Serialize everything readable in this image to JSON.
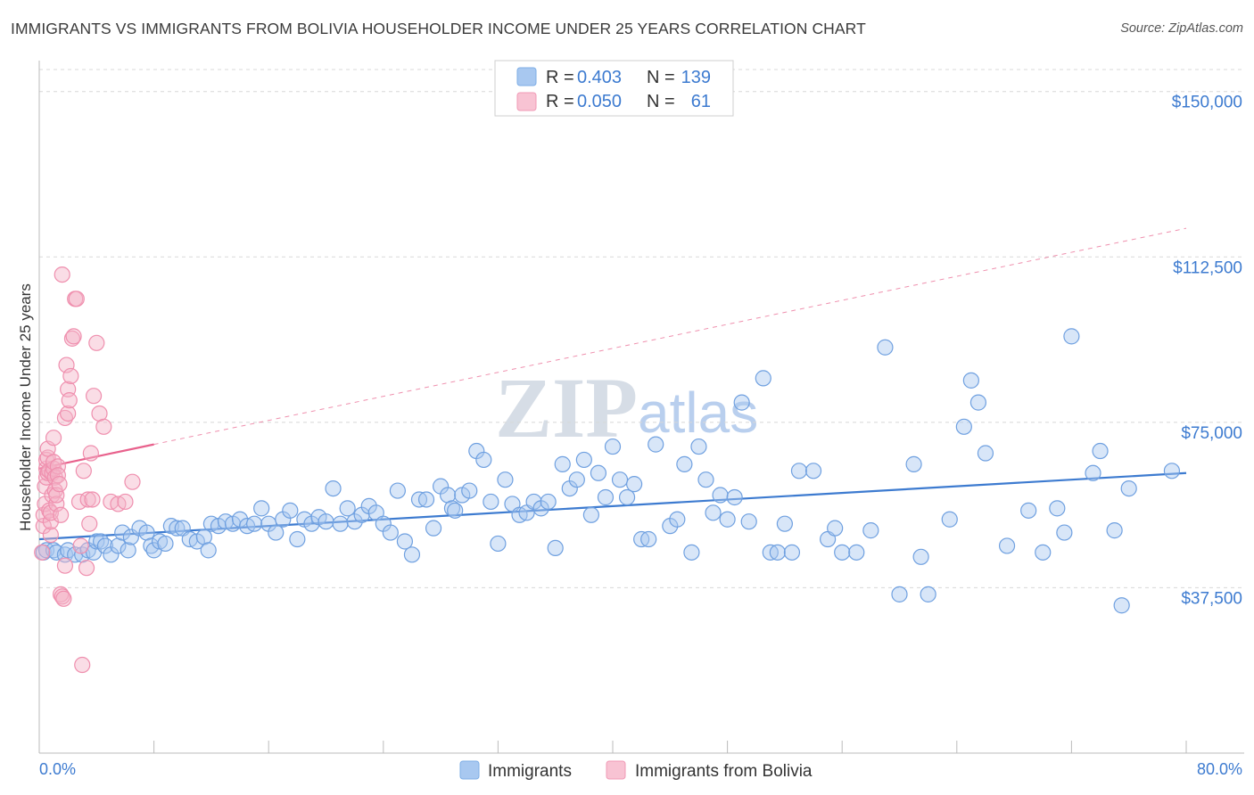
{
  "title": "IMMIGRANTS VS IMMIGRANTS FROM BOLIVIA HOUSEHOLDER INCOME UNDER 25 YEARS CORRELATION CHART",
  "source": "Source: ZipAtlas.com",
  "watermark": {
    "zip": "ZIP",
    "atlas": "atlas"
  },
  "colors": {
    "blue": "#3d7bd0",
    "blue_fill": "#a8c8f0",
    "pink": "#e8618c",
    "pink_fill": "#f5b3c8",
    "grid": "#d8d8d8"
  },
  "legend": {
    "series": [
      {
        "r_label": "R =",
        "r_value": "0.403",
        "n_label": "N =",
        "n_value": "139"
      },
      {
        "r_label": "R =",
        "r_value": "0.050",
        "n_label": "N =",
        "n_value": "61"
      }
    ]
  },
  "chart_data": {
    "type": "scatter",
    "title": "IMMIGRANTS VS IMMIGRANTS FROM BOLIVIA HOUSEHOLDER INCOME UNDER 25 YEARS CORRELATION CHART",
    "xlabel": "",
    "ylabel": "Householder Income Under 25 years",
    "xlim": [
      0,
      80
    ],
    "ylim": [
      0,
      155000
    ],
    "x_tick_labels": [
      "0.0%",
      "80.0%"
    ],
    "y_ticks": [
      37500,
      75000,
      112500,
      150000
    ],
    "y_tick_labels": [
      "$37,500",
      "$75,000",
      "$112,500",
      "$150,000"
    ],
    "series": [
      {
        "name": "Immigrants",
        "color": "#3d7bd0",
        "trend": {
          "x0": 0,
          "y0": 48500,
          "x1": 80,
          "y1": 63500,
          "dashed_to": null
        },
        "points": [
          [
            0.3,
            45500
          ],
          [
            0.5,
            46000
          ],
          [
            1.0,
            46000
          ],
          [
            1.2,
            45500
          ],
          [
            1.8,
            45000
          ],
          [
            2.0,
            46000
          ],
          [
            2.5,
            45000
          ],
          [
            3.0,
            45000
          ],
          [
            3.4,
            46000
          ],
          [
            3.8,
            45500
          ],
          [
            4.0,
            48000
          ],
          [
            4.3,
            48000
          ],
          [
            4.6,
            47000
          ],
          [
            5.0,
            45000
          ],
          [
            5.5,
            47000
          ],
          [
            5.8,
            50000
          ],
          [
            6.2,
            46000
          ],
          [
            6.4,
            49000
          ],
          [
            7.0,
            51000
          ],
          [
            7.5,
            50000
          ],
          [
            7.8,
            47000
          ],
          [
            8.0,
            46000
          ],
          [
            8.4,
            48000
          ],
          [
            8.8,
            47500
          ],
          [
            9.2,
            51500
          ],
          [
            9.6,
            51000
          ],
          [
            10.0,
            51000
          ],
          [
            10.5,
            48500
          ],
          [
            11.0,
            48000
          ],
          [
            11.5,
            49000
          ],
          [
            11.8,
            46000
          ],
          [
            12.0,
            52000
          ],
          [
            12.5,
            51500
          ],
          [
            13.0,
            52500
          ],
          [
            13.5,
            52000
          ],
          [
            14.0,
            53000
          ],
          [
            14.5,
            51500
          ],
          [
            15.0,
            52000
          ],
          [
            15.5,
            55500
          ],
          [
            16.0,
            52000
          ],
          [
            16.5,
            50000
          ],
          [
            17.0,
            53000
          ],
          [
            17.5,
            55000
          ],
          [
            18.0,
            48500
          ],
          [
            18.5,
            53000
          ],
          [
            19.0,
            52000
          ],
          [
            19.5,
            53500
          ],
          [
            20.0,
            52500
          ],
          [
            20.5,
            60000
          ],
          [
            21.0,
            52000
          ],
          [
            21.5,
            55500
          ],
          [
            22.0,
            52500
          ],
          [
            22.5,
            54000
          ],
          [
            23.0,
            56000
          ],
          [
            23.5,
            54500
          ],
          [
            24.0,
            52000
          ],
          [
            24.5,
            50000
          ],
          [
            25.0,
            59500
          ],
          [
            25.5,
            48000
          ],
          [
            26.0,
            45000
          ],
          [
            26.5,
            57500
          ],
          [
            27.0,
            57500
          ],
          [
            27.5,
            51000
          ],
          [
            28.0,
            60500
          ],
          [
            28.5,
            58500
          ],
          [
            28.8,
            55500
          ],
          [
            29.0,
            55000
          ],
          [
            29.5,
            58500
          ],
          [
            30.0,
            59500
          ],
          [
            30.5,
            68500
          ],
          [
            31.0,
            66500
          ],
          [
            31.5,
            57000
          ],
          [
            32.0,
            47500
          ],
          [
            32.5,
            62000
          ],
          [
            33.0,
            56500
          ],
          [
            33.5,
            54000
          ],
          [
            34.0,
            54500
          ],
          [
            34.5,
            57000
          ],
          [
            35.0,
            55500
          ],
          [
            35.5,
            57000
          ],
          [
            36.0,
            46500
          ],
          [
            36.5,
            65500
          ],
          [
            37.0,
            60000
          ],
          [
            37.5,
            62000
          ],
          [
            38.0,
            66500
          ],
          [
            38.5,
            54000
          ],
          [
            39.0,
            63500
          ],
          [
            39.5,
            58000
          ],
          [
            40.0,
            69500
          ],
          [
            40.5,
            62000
          ],
          [
            41.0,
            58000
          ],
          [
            41.5,
            61000
          ],
          [
            42.0,
            48500
          ],
          [
            42.5,
            48500
          ],
          [
            43.0,
            70000
          ],
          [
            44.0,
            51500
          ],
          [
            44.5,
            53000
          ],
          [
            45.0,
            65500
          ],
          [
            45.5,
            45500
          ],
          [
            46.0,
            69500
          ],
          [
            46.5,
            62000
          ],
          [
            47.0,
            54500
          ],
          [
            47.5,
            58500
          ],
          [
            48.0,
            53000
          ],
          [
            48.5,
            58000
          ],
          [
            49.0,
            79500
          ],
          [
            49.5,
            52500
          ],
          [
            50.5,
            85000
          ],
          [
            51.0,
            45500
          ],
          [
            51.5,
            45500
          ],
          [
            52.0,
            52000
          ],
          [
            52.5,
            45500
          ],
          [
            53.0,
            64000
          ],
          [
            54.0,
            64000
          ],
          [
            55.0,
            48500
          ],
          [
            55.5,
            51000
          ],
          [
            56.0,
            45500
          ],
          [
            57.0,
            45500
          ],
          [
            58.0,
            50500
          ],
          [
            59.0,
            92000
          ],
          [
            60.0,
            36000
          ],
          [
            61.0,
            65500
          ],
          [
            61.5,
            44500
          ],
          [
            62.0,
            36000
          ],
          [
            63.5,
            53000
          ],
          [
            64.5,
            74000
          ],
          [
            65.0,
            84500
          ],
          [
            65.5,
            79500
          ],
          [
            66.0,
            68000
          ],
          [
            67.5,
            47000
          ],
          [
            69.0,
            55000
          ],
          [
            70.0,
            45500
          ],
          [
            71.0,
            55500
          ],
          [
            71.5,
            50000
          ],
          [
            72.0,
            94500
          ],
          [
            73.5,
            63500
          ],
          [
            74.0,
            68500
          ],
          [
            75.0,
            50500
          ],
          [
            75.5,
            33500
          ],
          [
            76.0,
            60000
          ],
          [
            79.0,
            64000
          ]
        ]
      },
      {
        "name": "Immigrants from Bolivia",
        "color": "#e8618c",
        "trend": {
          "x0": 0,
          "y0": 64500,
          "x1": 8,
          "y1": 70000,
          "dashed_to": {
            "x": 80,
            "y": 119000
          }
        },
        "points": [
          [
            0.2,
            45500
          ],
          [
            0.3,
            51500
          ],
          [
            0.3,
            54000
          ],
          [
            0.4,
            56500
          ],
          [
            0.4,
            60500
          ],
          [
            0.5,
            62500
          ],
          [
            0.5,
            64500
          ],
          [
            0.5,
            66500
          ],
          [
            0.6,
            63500
          ],
          [
            0.6,
            67000
          ],
          [
            0.6,
            69000
          ],
          [
            0.7,
            64000
          ],
          [
            0.7,
            55000
          ],
          [
            0.8,
            49500
          ],
          [
            0.8,
            52500
          ],
          [
            0.8,
            54500
          ],
          [
            0.9,
            58500
          ],
          [
            0.9,
            63500
          ],
          [
            1.0,
            64500
          ],
          [
            1.0,
            66000
          ],
          [
            1.1,
            62500
          ],
          [
            1.1,
            59500
          ],
          [
            1.2,
            56500
          ],
          [
            1.2,
            58500
          ],
          [
            1.3,
            65000
          ],
          [
            1.3,
            63000
          ],
          [
            1.4,
            61000
          ],
          [
            1.5,
            54000
          ],
          [
            1.5,
            36000
          ],
          [
            1.6,
            35500
          ],
          [
            1.7,
            35000
          ],
          [
            1.8,
            42500
          ],
          [
            1.8,
            76000
          ],
          [
            1.9,
            88000
          ],
          [
            2.0,
            82500
          ],
          [
            2.0,
            77000
          ],
          [
            2.1,
            80000
          ],
          [
            2.2,
            85500
          ],
          [
            2.3,
            94000
          ],
          [
            2.4,
            94500
          ],
          [
            2.5,
            103000
          ],
          [
            2.6,
            103000
          ],
          [
            2.8,
            57000
          ],
          [
            2.9,
            47000
          ],
          [
            3.0,
            20000
          ],
          [
            3.1,
            64000
          ],
          [
            3.3,
            42000
          ],
          [
            3.4,
            57500
          ],
          [
            3.6,
            68000
          ],
          [
            3.7,
            57500
          ],
          [
            3.8,
            81000
          ],
          [
            4.0,
            93000
          ],
          [
            4.2,
            77000
          ],
          [
            4.5,
            74000
          ],
          [
            5.0,
            57000
          ],
          [
            5.5,
            56500
          ],
          [
            6.0,
            57000
          ],
          [
            6.5,
            61500
          ],
          [
            3.5,
            52000
          ],
          [
            1.0,
            71500
          ],
          [
            1.6,
            108500
          ]
        ]
      }
    ]
  },
  "bottom_legend": [
    "Immigrants",
    "Immigrants from Bolivia"
  ]
}
